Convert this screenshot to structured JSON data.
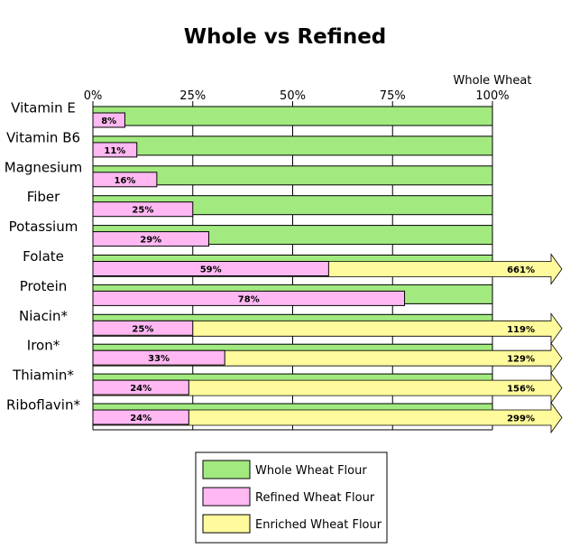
{
  "chart_data": {
    "type": "bar",
    "orientation": "horizontal",
    "title": "Whole vs Refined",
    "axis_top_label": "Whole Wheat",
    "xlim": [
      0,
      100
    ],
    "ticks": [
      0,
      25,
      50,
      75,
      100
    ],
    "tick_labels": [
      "0%",
      "25%",
      "50%",
      "75%",
      "100%"
    ],
    "grid": true,
    "categories": [
      "Vitamin E",
      "Vitamin B6",
      "Magnesium",
      "Fiber",
      "Potassium",
      "Folate",
      "Protein",
      "Niacin*",
      "Iron*",
      "Thiamin*",
      "Riboflavin*"
    ],
    "series": [
      {
        "name": "Whole Wheat Flour",
        "color": "#a2ea7f",
        "values": [
          100,
          100,
          100,
          100,
          100,
          100,
          100,
          100,
          100,
          100,
          100
        ]
      },
      {
        "name": "Refined Wheat Flour",
        "color": "#ffb8f2",
        "values": [
          8,
          11,
          16,
          25,
          29,
          59,
          78,
          25,
          33,
          24,
          24
        ],
        "labels": [
          "8%",
          "11%",
          "16%",
          "25%",
          "29%",
          "59%",
          "78%",
          "25%",
          "33%",
          "24%",
          "24%"
        ]
      },
      {
        "name": "Enriched Wheat Flour",
        "color": "#fffa9c",
        "values": [
          null,
          null,
          null,
          null,
          null,
          661,
          null,
          119,
          129,
          156,
          299
        ],
        "labels": [
          null,
          null,
          null,
          null,
          null,
          "661%",
          null,
          "119%",
          "129%",
          "156%",
          "299%"
        ]
      }
    ],
    "legend_position": "bottom-center"
  }
}
